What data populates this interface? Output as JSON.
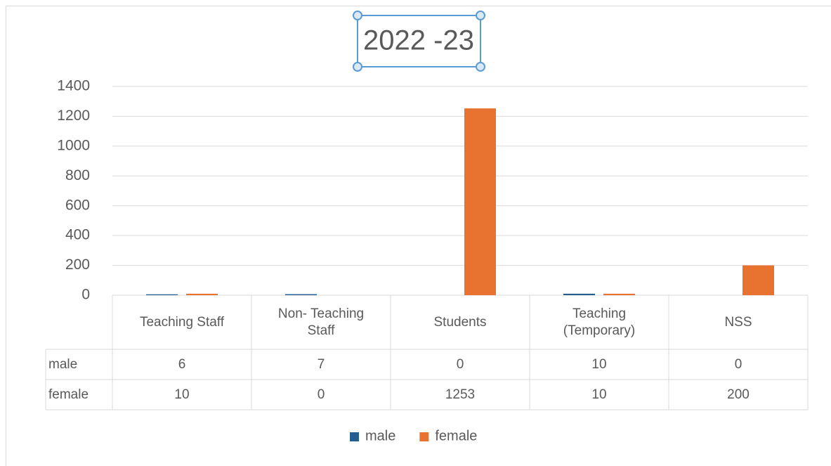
{
  "chart_data": {
    "type": "bar",
    "title": "2022 -23",
    "categories": [
      "Teaching Staff",
      "Non- Teaching Staff",
      "Students",
      "Teaching (Temporary)",
      "NSS"
    ],
    "series": [
      {
        "name": "male",
        "color": "#255e91",
        "values": [
          6,
          7,
          0,
          10,
          0
        ]
      },
      {
        "name": "female",
        "color": "#e8722f",
        "values": [
          10,
          0,
          1253,
          10,
          200
        ]
      }
    ],
    "ylim": [
      0,
      1400
    ],
    "yticks": [
      0,
      200,
      400,
      600,
      800,
      1000,
      1200,
      1400
    ],
    "grid": true,
    "legend": "bottom"
  }
}
